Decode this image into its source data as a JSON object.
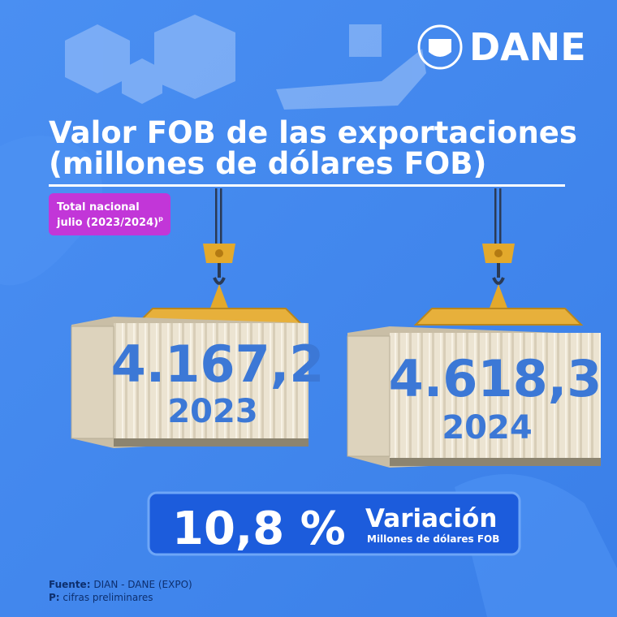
{
  "logo": "DANE",
  "title": {
    "line1": "Valor FOB de las exportaciones",
    "line2": "(millones de dólares FOB)"
  },
  "tag": {
    "line1": "Total nacional",
    "line2": "julio (2023/2024)",
    "mark": "p"
  },
  "containers": [
    {
      "value": "4.167,2",
      "year": "2023"
    },
    {
      "value": "4.618,3",
      "year": "2024"
    }
  ],
  "variation": {
    "value": "10,8 %",
    "label": "Variación",
    "unit": "Millones de dólares FOB"
  },
  "footer": {
    "source_label": "Fuente:",
    "source": "DIAN - DANE (EXPO)",
    "note_label": "P:",
    "note": "cifras preliminares"
  }
}
